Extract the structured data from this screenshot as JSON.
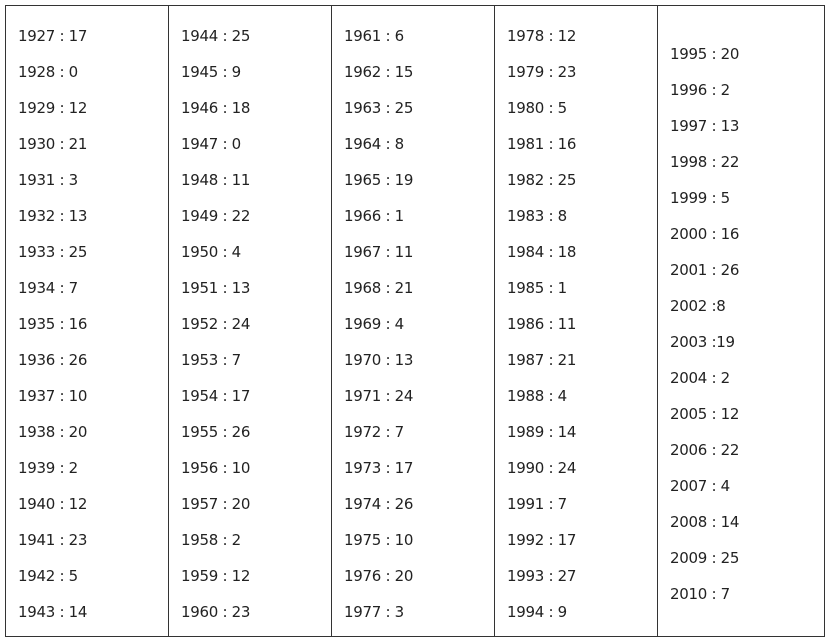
{
  "table": {
    "columns": [
      [
        "1927 : 17",
        "1928 : 0",
        "1929 : 12",
        "1930 : 21",
        "1931 : 3",
        "1932 : 13",
        "1933 : 25",
        "1934 : 7",
        "1935 : 16",
        "1936 : 26",
        "1937 : 10",
        "1938 : 20",
        "1939 : 2",
        "1940 : 12",
        "1941 : 23",
        "1942 : 5",
        "1943 : 14"
      ],
      [
        "1944 : 25",
        "1945 : 9",
        "1946 : 18",
        "1947 : 0",
        "1948 : 11",
        "1949 : 22",
        "1950 : 4",
        "1951 : 13",
        "1952 : 24",
        "1953 : 7",
        "1954 : 17",
        "1955 : 26",
        "1956 : 10",
        "1957 : 20",
        "1958 : 2",
        "1959 : 12",
        "1960 : 23"
      ],
      [
        "1961 : 6",
        "1962 : 15",
        "1963 : 25",
        "1964 : 8",
        "1965 : 19",
        "1966 : 1",
        "1967 : 11",
        "1968 : 21",
        "1969 : 4",
        "1970 : 13",
        "1971 : 24",
        "1972 : 7",
        "1973 : 17",
        "1974 : 26",
        "1975 : 10",
        "1976 : 20",
        "1977 : 3"
      ],
      [
        "1978 : 12",
        "1979 : 23",
        "1980 : 5",
        "1981 : 16",
        "1982 : 25",
        "1983 : 8",
        "1984 : 18",
        "1985 : 1",
        "1986 : 11",
        "1987 : 21",
        "1988 : 4",
        "1989 : 14",
        "1990 : 24",
        "1991 : 7",
        "1992 : 17",
        "1993 : 27",
        "1994 : 9"
      ],
      [
        "1995 : 20",
        "1996 : 2",
        "1997 : 13",
        "1998 : 22",
        "1999 : 5",
        "2000 : 16",
        "2001 : 26",
        "2002 :8",
        "2003 :19",
        "2004 : 2",
        "2005 : 12",
        "2006 : 22",
        "2007 : 4",
        "2008 : 14",
        "2009 : 25",
        "2010 : 7"
      ]
    ]
  }
}
